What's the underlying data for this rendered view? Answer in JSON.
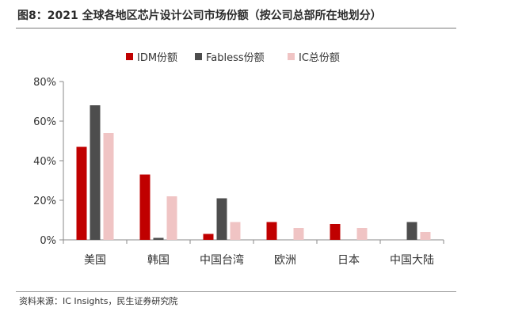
{
  "header": {
    "title": "图8：2021 全球各地区芯片设计公司市场份额（按公司总部所在地划分）"
  },
  "footer": {
    "source": "资料来源：IC Insights，民生证券研究院"
  },
  "chart_data": {
    "type": "bar",
    "title": "",
    "xlabel": "",
    "ylabel": "",
    "categories": [
      "美国",
      "韩国",
      "中国台湾",
      "欧洲",
      "日本",
      "中国大陆"
    ],
    "ylim": [
      0,
      80
    ],
    "yticks": [
      "0%",
      "20%",
      "40%",
      "60%",
      "80%"
    ],
    "y_tick_values": [
      0,
      20,
      40,
      60,
      80
    ],
    "grid": false,
    "legend_position": "top-center",
    "series": [
      {
        "name": "IDM份额",
        "color": "#c00000",
        "values": [
          47,
          33,
          3,
          9,
          8,
          0
        ]
      },
      {
        "name": "Fabless份额",
        "color": "#4d4d4d",
        "values": [
          68,
          1,
          21,
          0,
          0,
          9
        ]
      },
      {
        "name": "IC总份额",
        "color": "#f0c4c4",
        "values": [
          54,
          22,
          9,
          6,
          6,
          4
        ]
      }
    ]
  }
}
